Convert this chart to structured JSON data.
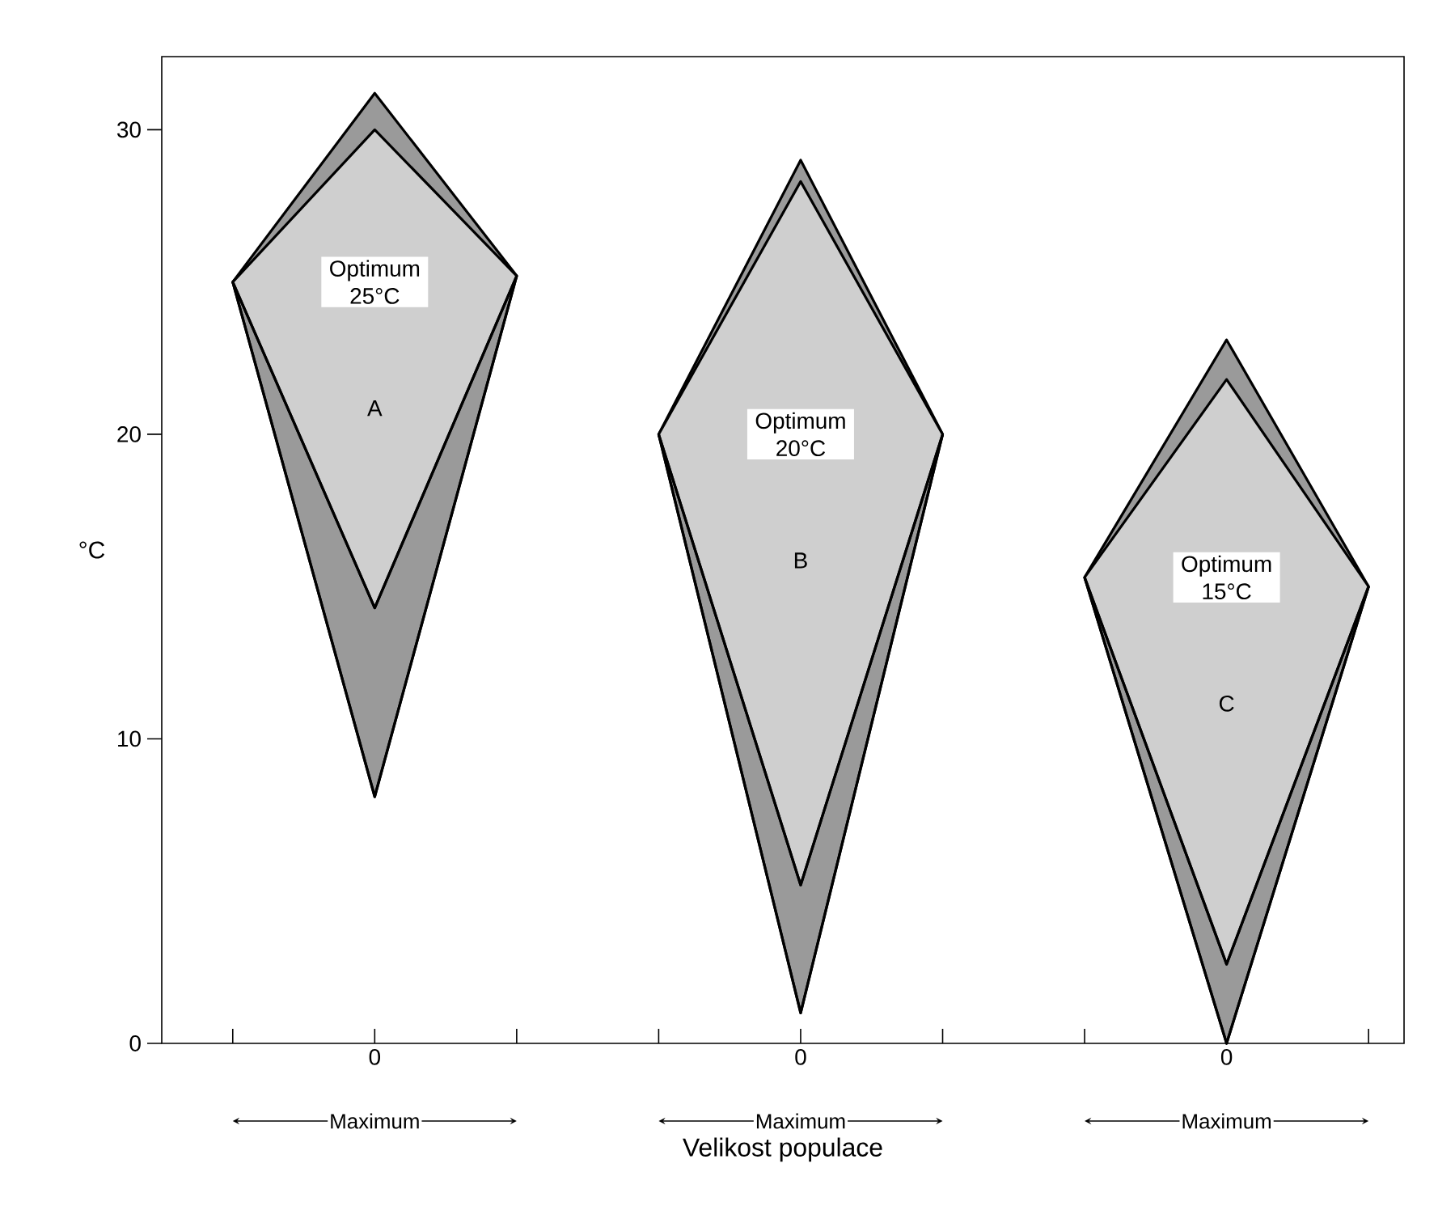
{
  "chart_data": {
    "type": "area",
    "xlabel": "Velikost populace",
    "ylabel": "°C",
    "categories": [
      null,
      "0",
      null,
      null,
      "0",
      null,
      null,
      "0",
      null
    ],
    "ylim": [
      0,
      32.4
    ],
    "yticks": [
      0,
      10,
      20,
      30
    ],
    "series": [
      {
        "type": "line",
        "color": "#000000",
        "values": [
          25.0,
          8.1,
          25.2,
          null,
          null,
          null,
          null,
          null,
          null
        ]
      },
      {
        "color": "#9a9a9a",
        "values": [
          25.0,
          31.2,
          25.2,
          null,
          null,
          null,
          null,
          null,
          null
        ]
      },
      {
        "type": "line",
        "color": "#000000",
        "values": [
          25.0,
          14.3,
          25.2,
          null,
          null,
          null,
          null,
          null,
          null
        ]
      },
      {
        "color": "#cfcfcf",
        "values": [
          25.0,
          30.0,
          25.2,
          null,
          null,
          null,
          null,
          null,
          null
        ]
      },
      {
        "type": "line",
        "color": "#000000",
        "values": [
          null,
          null,
          null,
          20.0,
          1.0,
          20.0,
          null,
          null,
          null
        ]
      },
      {
        "color": "#9a9a9a",
        "values": [
          null,
          null,
          null,
          20.0,
          29.0,
          20.0,
          null,
          null,
          null
        ]
      },
      {
        "type": "line",
        "color": "#000000",
        "values": [
          null,
          null,
          null,
          20.0,
          5.2,
          20.0,
          null,
          null,
          null
        ]
      },
      {
        "color": "#cfcfcf",
        "values": [
          null,
          null,
          null,
          20.0,
          28.3,
          20.0,
          null,
          null,
          null
        ]
      },
      {
        "type": "line",
        "color": "#000000",
        "values": [
          null,
          null,
          null,
          null,
          null,
          null,
          15.3,
          0,
          15.0
        ]
      },
      {
        "color": "#9a9a9a",
        "values": [
          null,
          null,
          null,
          null,
          null,
          null,
          15.3,
          23.1,
          15.0
        ]
      },
      {
        "type": "line",
        "color": "#000000",
        "values": [
          null,
          null,
          null,
          null,
          null,
          null,
          15.3,
          2.6,
          15.0
        ]
      },
      {
        "color": "#cfcfcf",
        "values": [
          null,
          null,
          null,
          null,
          null,
          null,
          15.3,
          21.8,
          15.0
        ]
      }
    ],
    "annotations": [
      "Optimum 25°C",
      "A",
      "Optimum 20°C",
      "B",
      "Optimum 15°C",
      "C",
      "Maximum",
      "Maximum",
      "Maximum"
    ]
  }
}
